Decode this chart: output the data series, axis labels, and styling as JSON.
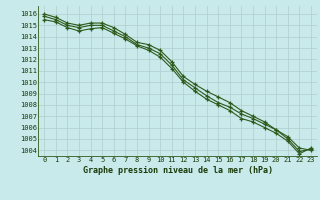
{
  "title": "Graphe pression niveau de la mer (hPa)",
  "background_color": "#c8eaea",
  "grid_color": "#b0cccc",
  "line_color": "#2d5a1b",
  "marker_color": "#2d5a1b",
  "xlim": [
    -0.5,
    23.5
  ],
  "ylim": [
    1003.5,
    1016.7
  ],
  "yticks": [
    1004,
    1005,
    1006,
    1007,
    1008,
    1009,
    1010,
    1011,
    1012,
    1013,
    1014,
    1015,
    1016
  ],
  "xticks": [
    0,
    1,
    2,
    3,
    4,
    5,
    6,
    7,
    8,
    9,
    10,
    11,
    12,
    13,
    14,
    15,
    16,
    17,
    18,
    19,
    20,
    21,
    22,
    23
  ],
  "series": [
    [
      1016.0,
      1015.7,
      1015.2,
      1015.0,
      1015.2,
      1015.2,
      1014.8,
      1014.2,
      1013.5,
      1013.3,
      1012.8,
      1011.8,
      1010.5,
      1009.8,
      1009.2,
      1008.7,
      1008.2,
      1007.5,
      1007.0,
      1006.5,
      1005.8,
      1005.2,
      1004.2,
      1004.0
    ],
    [
      1015.8,
      1015.5,
      1015.0,
      1014.8,
      1015.0,
      1015.0,
      1014.5,
      1014.0,
      1013.3,
      1013.0,
      1012.5,
      1011.5,
      1010.2,
      1009.5,
      1008.8,
      1008.2,
      1007.8,
      1007.2,
      1006.8,
      1006.3,
      1005.8,
      1005.0,
      1003.9,
      1004.1
    ],
    [
      1015.5,
      1015.3,
      1014.8,
      1014.5,
      1014.7,
      1014.8,
      1014.3,
      1013.8,
      1013.2,
      1012.8,
      1012.2,
      1011.2,
      1010.0,
      1009.2,
      1008.5,
      1008.0,
      1007.5,
      1006.8,
      1006.5,
      1006.0,
      1005.5,
      1004.8,
      1003.7,
      1004.2
    ]
  ],
  "ylabel_fontsize": 5.5,
  "xlabel_fontsize": 6.0,
  "tick_fontsize": 5.0,
  "linewidth": 0.8,
  "markersize": 3.0
}
